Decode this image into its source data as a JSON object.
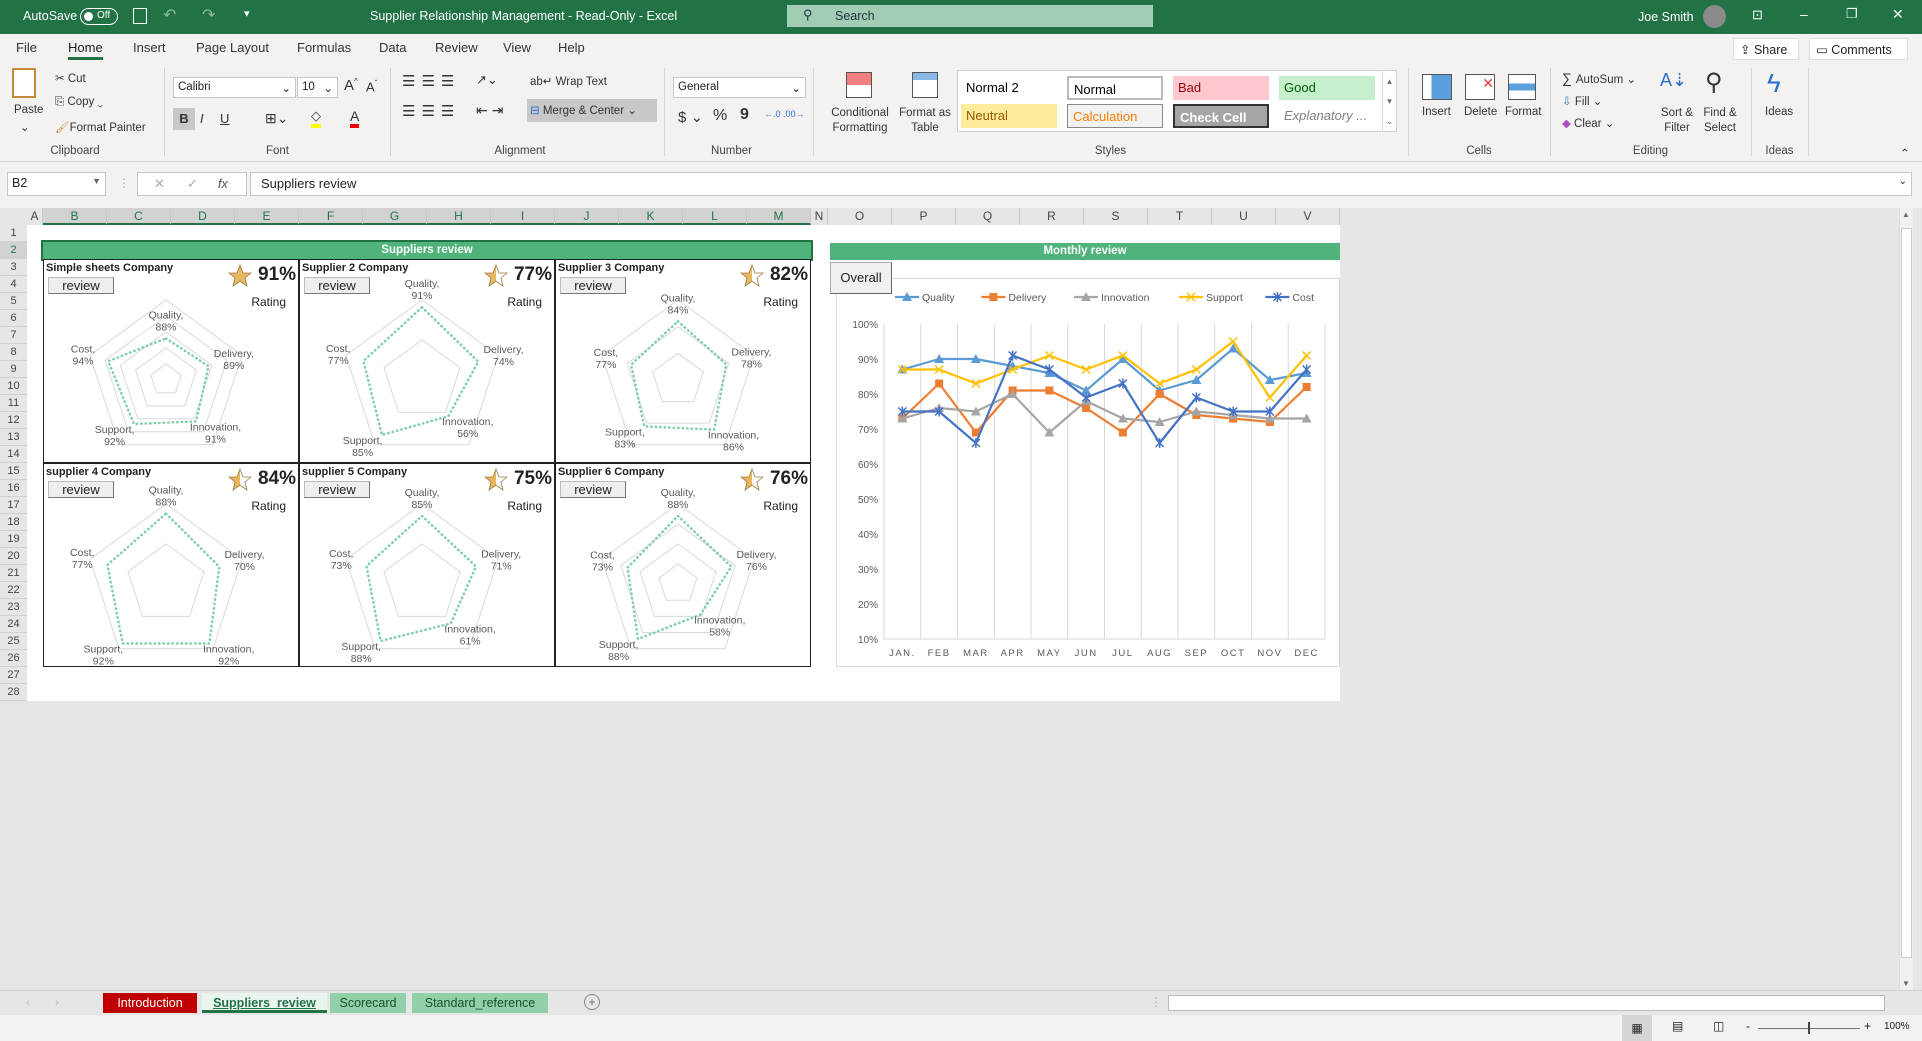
{
  "titlebar": {
    "autosave_label": "AutoSave",
    "autosave_state": "Off",
    "title": "Supplier Relationship Management  -  Read-Only  -  Excel",
    "search_placeholder": "Search",
    "user": "Joe Smith"
  },
  "menu": {
    "tabs": [
      "File",
      "Home",
      "Insert",
      "Page Layout",
      "Formulas",
      "Data",
      "Review",
      "View",
      "Help"
    ],
    "active": "Home",
    "share": "Share",
    "comments": "Comments"
  },
  "ribbon": {
    "clipboard": {
      "label": "Clipboard",
      "paste": "Paste",
      "cut": "Cut",
      "copy": "Copy",
      "format_painter": "Format Painter"
    },
    "font": {
      "label": "Font",
      "name": "Calibri",
      "size": "10",
      "bold": "B",
      "italic": "I",
      "underline": "U"
    },
    "alignment": {
      "label": "Alignment",
      "wrap": "Wrap Text",
      "merge": "Merge & Center"
    },
    "number": {
      "label": "Number",
      "format": "General",
      "currency": "$",
      "percent": "%",
      "comma": "9"
    },
    "styles": {
      "label": "Styles",
      "conditional": "Conditional Formatting",
      "format_table": "Format as Table",
      "cells": [
        {
          "name": "Normal 2",
          "bg": "#ffffff",
          "fg": "#000000"
        },
        {
          "name": "Normal",
          "bg": "#ffffff",
          "fg": "#000000"
        },
        {
          "name": "Bad",
          "bg": "#ffc7ce",
          "fg": "#9c0006"
        },
        {
          "name": "Good",
          "bg": "#c6efce",
          "fg": "#006100"
        },
        {
          "name": "Neutral",
          "bg": "#ffeb9c",
          "fg": "#9c5700"
        },
        {
          "name": "Calculation",
          "bg": "#f2f2f2",
          "fg": "#fa7d00"
        },
        {
          "name": "Check Cell",
          "bg": "#a5a5a5",
          "fg": "#ffffff"
        },
        {
          "name": "Explanatory ...",
          "bg": "#ffffff",
          "fg": "#7f7f7f"
        }
      ]
    },
    "cells": {
      "label": "Cells",
      "insert": "Insert",
      "delete": "Delete",
      "format": "Format"
    },
    "editing": {
      "label": "Editing",
      "autosum": "AutoSum",
      "fill": "Fill",
      "clear": "Clear",
      "sort": "Sort & Filter",
      "find": "Find & Select"
    },
    "ideas": {
      "label": "Ideas",
      "ideas": "Ideas"
    }
  },
  "formula_bar": {
    "name_box": "B2",
    "fx": "fx",
    "value": "Suppliers review"
  },
  "columns": [
    "A",
    "B",
    "C",
    "D",
    "E",
    "F",
    "G",
    "H",
    "I",
    "J",
    "K",
    "L",
    "M",
    "N",
    "O",
    "P",
    "Q",
    "R",
    "S",
    "T",
    "U",
    "V"
  ],
  "rows": [
    "1",
    "2",
    "3",
    "4",
    "5",
    "6",
    "7",
    "8",
    "9",
    "10",
    "11",
    "12",
    "13",
    "14",
    "15",
    "16",
    "17",
    "18",
    "19",
    "20",
    "21",
    "22",
    "23",
    "24",
    "25",
    "26",
    "27",
    "28"
  ],
  "suppliers_header": "Suppliers review",
  "review_button": "review",
  "rating_label": "Rating",
  "colors": {
    "header_green": "#4fb37b",
    "radar_line": "#7fcfa8",
    "star_gold": "#e8b860",
    "excel_green": "#217346"
  },
  "suppliers": [
    {
      "name": "Simple sheets Company",
      "rating": "91%",
      "rating_value": 0.91,
      "axis": [
        0.75,
        1.0,
        0.05
      ],
      "values": [
        0.88,
        0.89,
        0.91,
        0.92,
        0.94
      ]
    },
    {
      "name": "Supplier 2 Company",
      "rating": "77%",
      "rating_value": 0.77,
      "axis": [
        0,
        1.0,
        0.5
      ],
      "values": [
        0.91,
        0.74,
        0.56,
        0.85,
        0.77
      ]
    },
    {
      "name": "Supplier 3 Company",
      "rating": "82%",
      "rating_value": 0.82,
      "axis": [
        0.4,
        1.0,
        0.2
      ],
      "values": [
        0.84,
        0.78,
        0.86,
        0.83,
        0.77
      ]
    },
    {
      "name": "supplier 4 Company",
      "rating": "84%",
      "rating_value": 0.84,
      "axis": [
        0,
        1.0,
        0.5
      ],
      "values": [
        0.88,
        0.7,
        0.92,
        0.92,
        0.77
      ]
    },
    {
      "name": "supplier 5 Company",
      "rating": "75%",
      "rating_value": 0.75,
      "axis": [
        0,
        1.0,
        0.5
      ],
      "values": [
        0.85,
        0.71,
        0.61,
        0.88,
        0.73
      ]
    },
    {
      "name": "Supplier 6 Company",
      "rating": "76%",
      "rating_value": 0.76,
      "axis": [
        0.2,
        1.0,
        0.2
      ],
      "values": [
        0.88,
        0.76,
        0.58,
        0.88,
        0.73
      ]
    }
  ],
  "radar_categories": [
    "Quality",
    "Delivery",
    "Innovation",
    "Support",
    "Cost"
  ],
  "monthly_header": "Monthly review",
  "overall_button": "Overall",
  "chart_data": {
    "type": "line",
    "categories": [
      "JAN.",
      "FEB",
      "MAR",
      "APR",
      "MAY",
      "JUN",
      "JUL",
      "AUG",
      "SEP",
      "OCT",
      "NOV",
      "DEC"
    ],
    "ylim": [
      0.1,
      1.0
    ],
    "yticks": [
      "100%",
      "90%",
      "80%",
      "70%",
      "60%",
      "50%",
      "40%",
      "30%",
      "20%",
      "10%"
    ],
    "grid": "vertical",
    "legend": "top",
    "series": [
      {
        "name": "Quality",
        "color": "#5b9bd5",
        "marker": "triangle",
        "values": [
          0.87,
          0.9,
          0.9,
          0.88,
          0.86,
          0.81,
          0.9,
          0.81,
          0.84,
          0.93,
          0.84,
          0.86
        ]
      },
      {
        "name": "Delivery",
        "color": "#ed7d31",
        "marker": "square",
        "values": [
          0.73,
          0.83,
          0.69,
          0.81,
          0.81,
          0.76,
          0.69,
          0.8,
          0.74,
          0.73,
          0.72,
          0.82
        ]
      },
      {
        "name": "Innovation",
        "color": "#a5a5a5",
        "marker": "triangle",
        "values": [
          0.73,
          0.76,
          0.75,
          0.8,
          0.69,
          0.78,
          0.73,
          0.72,
          0.75,
          0.74,
          0.73,
          0.73
        ]
      },
      {
        "name": "Support",
        "color": "#ffc000",
        "marker": "x",
        "values": [
          0.87,
          0.87,
          0.83,
          0.87,
          0.91,
          0.87,
          0.91,
          0.83,
          0.87,
          0.95,
          0.79,
          0.91
        ]
      },
      {
        "name": "Cost",
        "color": "#4472c4",
        "marker": "asterisk",
        "values": [
          0.75,
          0.75,
          0.66,
          0.91,
          0.87,
          0.79,
          0.83,
          0.66,
          0.79,
          0.75,
          0.75,
          0.87
        ]
      }
    ]
  },
  "sheet_tabs": [
    {
      "name": "Introduction",
      "bg": "#c00000",
      "fg": "#ffffff"
    },
    {
      "name": "Suppliers_review",
      "bg": "#eaf5ee",
      "fg": "#217346",
      "active": true
    },
    {
      "name": "Scorecard",
      "bg": "#92d0aa",
      "fg": "#1d4d30"
    },
    {
      "name": "Standard_reference",
      "bg": "#92d0aa",
      "fg": "#1d4d30"
    }
  ],
  "status": {
    "zoom": "100%"
  }
}
